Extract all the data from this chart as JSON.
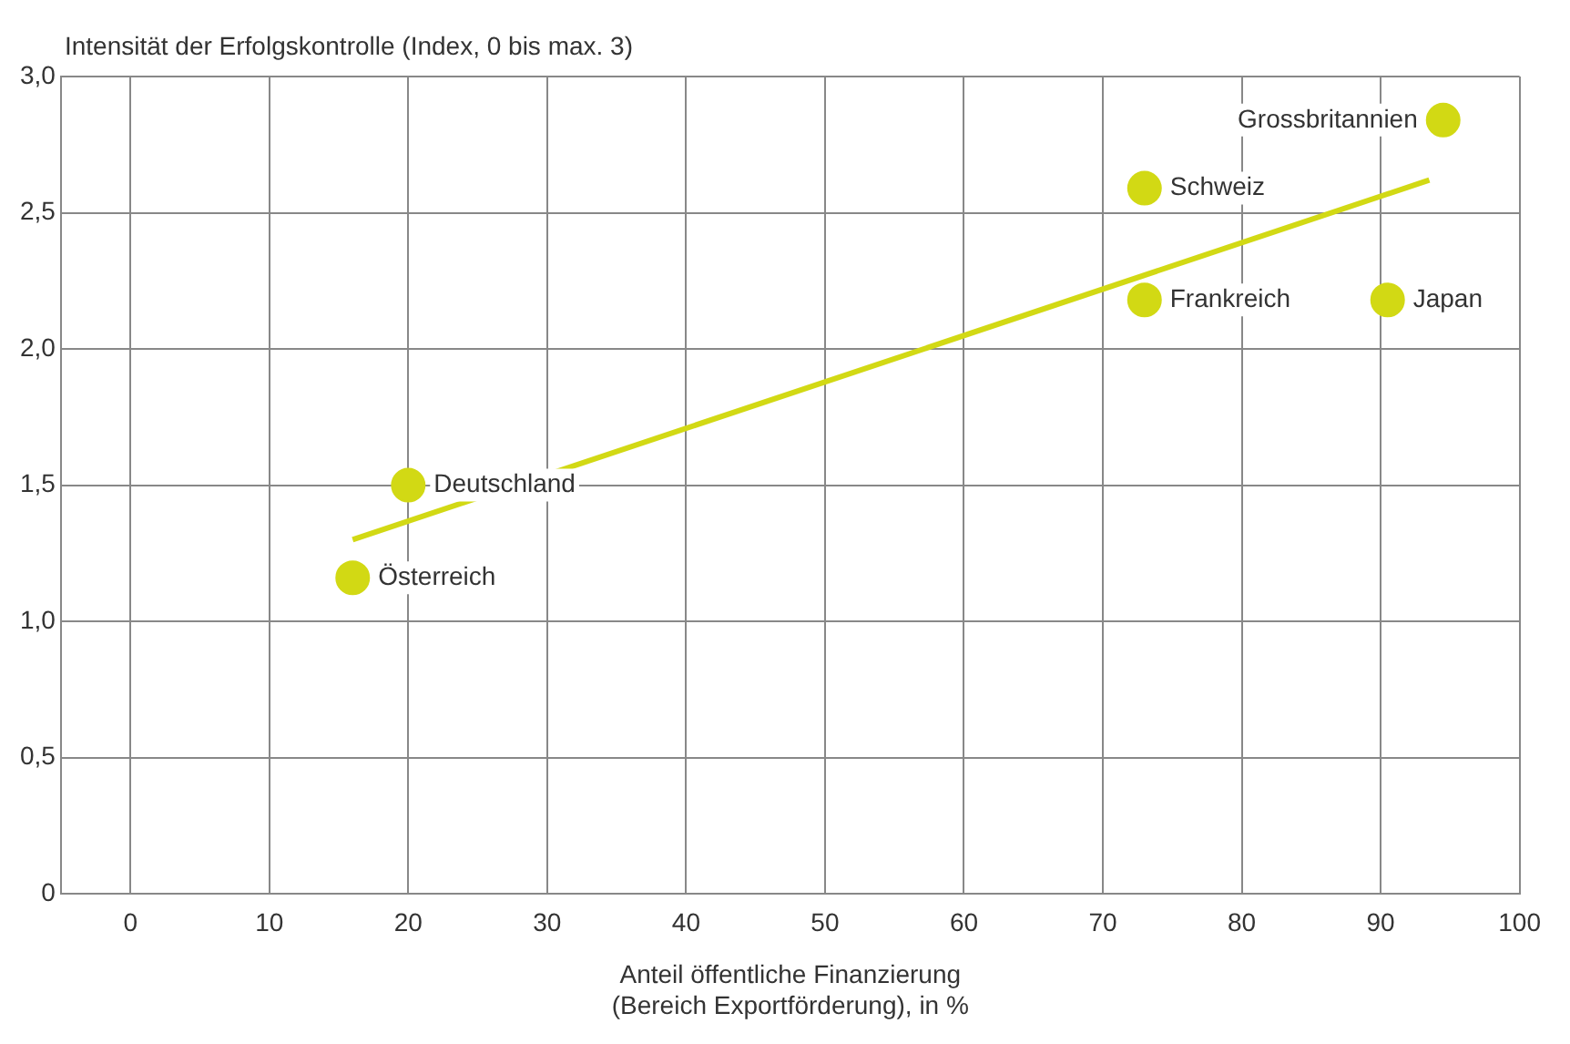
{
  "chart_data": {
    "type": "scatter",
    "ylabel": "Intensität der Erfolgskontrolle (Index, 0 bis max. 3)",
    "xlabel": "Anteil öffentliche Finanzierung\n(Bereich Exportförderung), in %",
    "series": [
      {
        "color": "#d2d914",
        "x": [
          16,
          20,
          73,
          73,
          90.5,
          94.5
        ],
        "values": [
          1.16,
          1.5,
          2.59,
          2.18,
          2.18,
          2.84
        ]
      },
      {
        "type": "line",
        "marker": "none",
        "color": "#d2d914",
        "x": [
          16,
          93.5
        ],
        "values": [
          1.3,
          2.62
        ]
      }
    ],
    "annotations": [
      {
        "text": "Österreich",
        "x": 16,
        "y": 1.16
      },
      {
        "text": "Deutschland",
        "x": 20,
        "y": 1.5
      },
      {
        "text": "Schweiz",
        "x": 73,
        "y": 2.59
      },
      {
        "text": "Frankreich",
        "x": 73,
        "y": 2.18
      },
      {
        "text": "Japan",
        "x": 90.5,
        "y": 2.18
      },
      {
        "text": "Grossbritannien",
        "x": 94.5,
        "y": 2.84
      }
    ],
    "xlim": [
      -5,
      100
    ],
    "xticks": [
      0,
      10,
      20,
      30,
      40,
      50,
      60,
      70,
      80,
      90,
      100
    ],
    "ylim": [
      0,
      3
    ],
    "yticks": [
      0,
      {
        "value": 0.5,
        "label": "0,5"
      },
      {
        "value": 1,
        "label": "1,0"
      },
      {
        "value": 1.5,
        "label": "1,5"
      },
      {
        "value": 2,
        "label": "2,0"
      },
      {
        "value": 2.5,
        "label": "2,5"
      },
      {
        "value": 3,
        "label": "3,0"
      }
    ],
    "grid": true,
    "legend": false,
    "marker": "circle"
  }
}
